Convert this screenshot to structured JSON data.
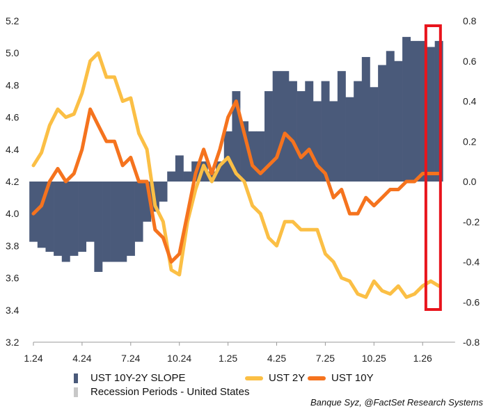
{
  "chart_data": {
    "type": "line",
    "title": "",
    "x_tick_labels": [
      "1.24",
      "4.24",
      "7.24",
      "10.24",
      "1.25",
      "4.25",
      "7.25",
      "10.25",
      "1.26"
    ],
    "x_tick_months": [
      0,
      3,
      6,
      9,
      12,
      15,
      18,
      21,
      24
    ],
    "x_unit": "months since Jan 2024",
    "xlim": [
      0,
      26
    ],
    "left_axis": {
      "ylim": [
        3.2,
        5.2
      ],
      "ticks": [
        "5.2",
        "5.0",
        "4.8",
        "4.6",
        "4.4",
        "4.2",
        "4.0",
        "3.8",
        "3.6",
        "3.4",
        "3.2"
      ]
    },
    "right_axis": {
      "ylim": [
        -0.8,
        0.8
      ],
      "ticks": [
        "0.8",
        "0.6",
        "0.4",
        "0.2",
        "0.0",
        "-0.2",
        "-0.4",
        "-0.6",
        "-0.8"
      ]
    },
    "x": [
      0,
      0.5,
      1,
      1.5,
      2,
      2.5,
      3,
      3.5,
      4,
      4.5,
      5,
      5.5,
      6,
      6.5,
      7,
      7.5,
      8,
      8.5,
      9,
      9.5,
      10,
      10.5,
      11,
      11.5,
      12,
      12.5,
      13,
      13.5,
      14,
      14.5,
      15,
      15.5,
      16,
      16.5,
      17,
      17.5,
      18,
      18.5,
      19,
      19.5,
      20,
      20.5,
      21,
      21.5,
      22,
      22.5,
      23,
      23.5,
      24,
      24.5,
      25
    ],
    "series": [
      {
        "name": "UST 10Y-2Y SLOPE",
        "axis": "right",
        "type": "bar",
        "color": "#4a5a7a",
        "values": [
          -0.3,
          -0.33,
          -0.35,
          -0.37,
          -0.4,
          -0.37,
          -0.35,
          -0.3,
          -0.45,
          -0.4,
          -0.4,
          -0.4,
          -0.37,
          -0.3,
          -0.2,
          -0.15,
          -0.1,
          0.05,
          0.13,
          0.05,
          0.1,
          0.1,
          0.05,
          0.1,
          0.25,
          0.45,
          0.3,
          0.25,
          0.25,
          0.45,
          0.55,
          0.55,
          0.5,
          0.45,
          0.5,
          0.4,
          0.5,
          0.4,
          0.55,
          0.42,
          0.5,
          0.62,
          0.47,
          0.58,
          0.65,
          0.6,
          0.72,
          0.7,
          0.7,
          0.67,
          0.7
        ]
      },
      {
        "name": "UST 2Y",
        "axis": "left",
        "type": "line",
        "color": "#fbbf45",
        "values": [
          4.3,
          4.38,
          4.55,
          4.65,
          4.6,
          4.62,
          4.75,
          4.95,
          5.0,
          4.85,
          4.85,
          4.7,
          4.72,
          4.5,
          4.4,
          4.05,
          3.95,
          3.65,
          3.62,
          3.95,
          4.15,
          4.3,
          4.2,
          4.3,
          4.35,
          4.25,
          4.2,
          4.05,
          4.0,
          3.85,
          3.8,
          3.95,
          3.95,
          3.9,
          3.9,
          3.9,
          3.75,
          3.7,
          3.6,
          3.58,
          3.5,
          3.48,
          3.58,
          3.52,
          3.5,
          3.55,
          3.48,
          3.5,
          3.55,
          3.58,
          3.55
        ]
      },
      {
        "name": "UST 10Y",
        "axis": "left",
        "type": "line",
        "color": "#f5731e",
        "values": [
          4.0,
          4.05,
          4.2,
          4.28,
          4.2,
          4.25,
          4.4,
          4.65,
          4.55,
          4.45,
          4.45,
          4.3,
          4.35,
          4.2,
          4.2,
          3.9,
          3.85,
          3.7,
          3.75,
          4.0,
          4.25,
          4.4,
          4.25,
          4.4,
          4.6,
          4.7,
          4.5,
          4.3,
          4.25,
          4.3,
          4.35,
          4.5,
          4.45,
          4.35,
          4.4,
          4.3,
          4.25,
          4.1,
          4.15,
          4.0,
          4.0,
          4.1,
          4.05,
          4.1,
          4.15,
          4.15,
          4.2,
          4.2,
          4.25,
          4.25,
          4.25
        ]
      }
    ],
    "legend": {
      "slope": "UST 10Y-2Y SLOPE",
      "recession": "Recession Periods - United States",
      "y2": "UST 2Y",
      "y10": "UST 10Y",
      "recession_color": "#c8c8c8"
    },
    "highlight": {
      "color": "#e8141c",
      "from_month": 24.2,
      "to_month": 25.1
    },
    "source": "Banque Syz, @FactSet Research Systems"
  }
}
